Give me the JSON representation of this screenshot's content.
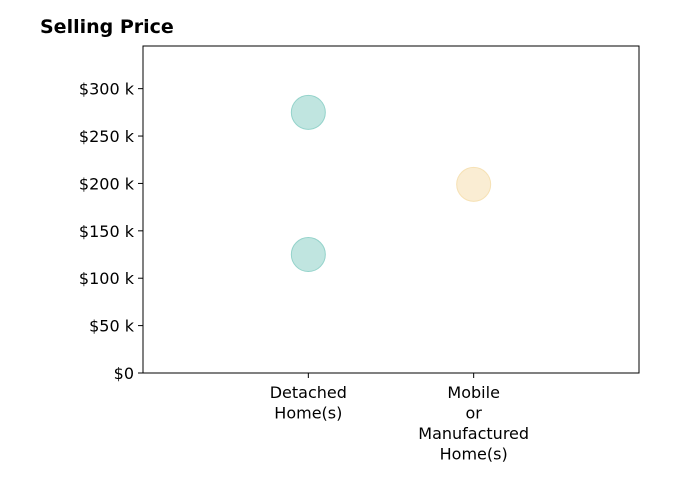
{
  "chart_data": {
    "type": "scatter",
    "title": "Selling Price",
    "xlabel": "",
    "ylabel": "",
    "categories": [
      [
        "Detached",
        "Home(s)"
      ],
      [
        "Mobile",
        "or",
        "Manufactured",
        "Home(s)"
      ]
    ],
    "y_ticks": [
      "$0",
      "$50 k",
      "$100 k",
      "$150 k",
      "$200 k",
      "$250 k",
      "$300 k"
    ],
    "y_tick_values": [
      0,
      50000,
      100000,
      150000,
      200000,
      250000,
      300000
    ],
    "ylim": [
      0,
      345000
    ],
    "xlim": [
      -1,
      2
    ],
    "grid": false,
    "points": [
      {
        "category": 0,
        "y": 275000,
        "color": "#8ccfc6"
      },
      {
        "category": 0,
        "y": 125000,
        "color": "#8ccfc6"
      },
      {
        "category": 1,
        "y": 199000,
        "color": "#f5dfaf"
      }
    ]
  }
}
